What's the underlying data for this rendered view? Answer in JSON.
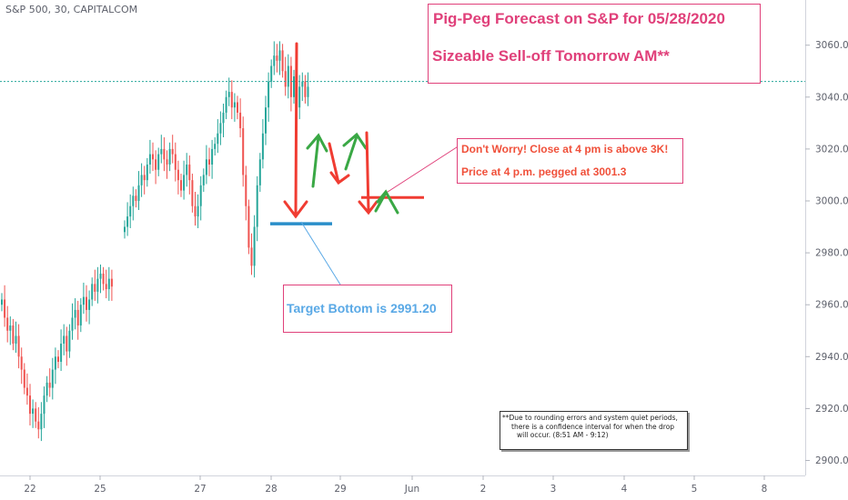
{
  "symbol": "S&P 500, 30, CAPITALCOM",
  "annotations": {
    "title_line1": "Pig-Peg Forecast on S&P for 05/28/2020",
    "title_line2": "Sizeable Sell-off Tomorrow AM**",
    "close_line1": "Don't Worry! Close at 4 pm is above 3K!",
    "close_line2": "Price at 4 p.m. pegged at 3001.3",
    "target_line1": "Target Bottom is 2991.20",
    "note_line1": "**Due to rounding errors and system quiet periods,",
    "note_line2": "there is a confidence interval for when the drop",
    "note_line3": "will occur.   (8:51 AM - 9:12)"
  },
  "colors": {
    "up": "#26a69a",
    "down": "#ef5350",
    "annotation_pink": "#e0407a",
    "arrow_red": "#f03c32",
    "arrow_green": "#3aa845",
    "target_line": "#2a8ec9",
    "target_text": "#5aa9e6",
    "axis_text": "#5d606b"
  },
  "chart_data": {
    "type": "candlestick",
    "ylim": [
      2895,
      3075
    ],
    "yticks": [
      2900,
      2920,
      2940,
      2960,
      2980,
      3000,
      3020,
      3040,
      3060
    ],
    "ytick_labels": [
      "2900.0",
      "2920.0",
      "2940.0",
      "2960.0",
      "2980.0",
      "3000.0",
      "3020.0",
      "3040.0",
      "3060.0"
    ],
    "xticks": [
      "22",
      "25",
      "27",
      "28",
      "29",
      "Jun",
      "2",
      "3",
      "4",
      "5",
      "8"
    ],
    "dotted_level": 3046,
    "target_level": 2991.2,
    "close_level": 3001.3,
    "segments": [
      {
        "start": 2960,
        "points": [
          2962,
          2955,
          2950,
          2952,
          2945,
          2948,
          2940,
          2935,
          2928,
          2925,
          2918,
          2920,
          2915,
          2912,
          2918,
          2925,
          2930,
          2928,
          2935,
          2940,
          2938,
          2945,
          2948,
          2942,
          2950,
          2955,
          2958,
          2952,
          2960,
          2963,
          2958,
          2962,
          2968,
          2965,
          2970,
          2972,
          2968,
          2966,
          2970,
          2967
        ]
      },
      {
        "start": 2988,
        "points": [
          2990,
          2994,
          2998,
          3002,
          3000,
          3006,
          3010,
          3008,
          3014,
          3018,
          3016,
          3012,
          3018,
          3020,
          3016,
          3014,
          3020,
          3018,
          3012,
          3008,
          3004,
          3010,
          3014,
          3008,
          2998,
          2994,
          2998,
          3006,
          3010,
          3016,
          3014,
          3020,
          3022,
          3026,
          3030,
          3034,
          3040,
          3042,
          3036,
          3038,
          3034,
          3028,
          3010,
          2998,
          2982,
          2975,
          2990,
          3006,
          3016,
          3026,
          3036,
          3046,
          3052,
          3056,
          3054,
          3058,
          3050,
          3044,
          3052,
          3040,
          3048,
          3036,
          3044,
          3046,
          3040,
          3044
        ]
      }
    ]
  }
}
